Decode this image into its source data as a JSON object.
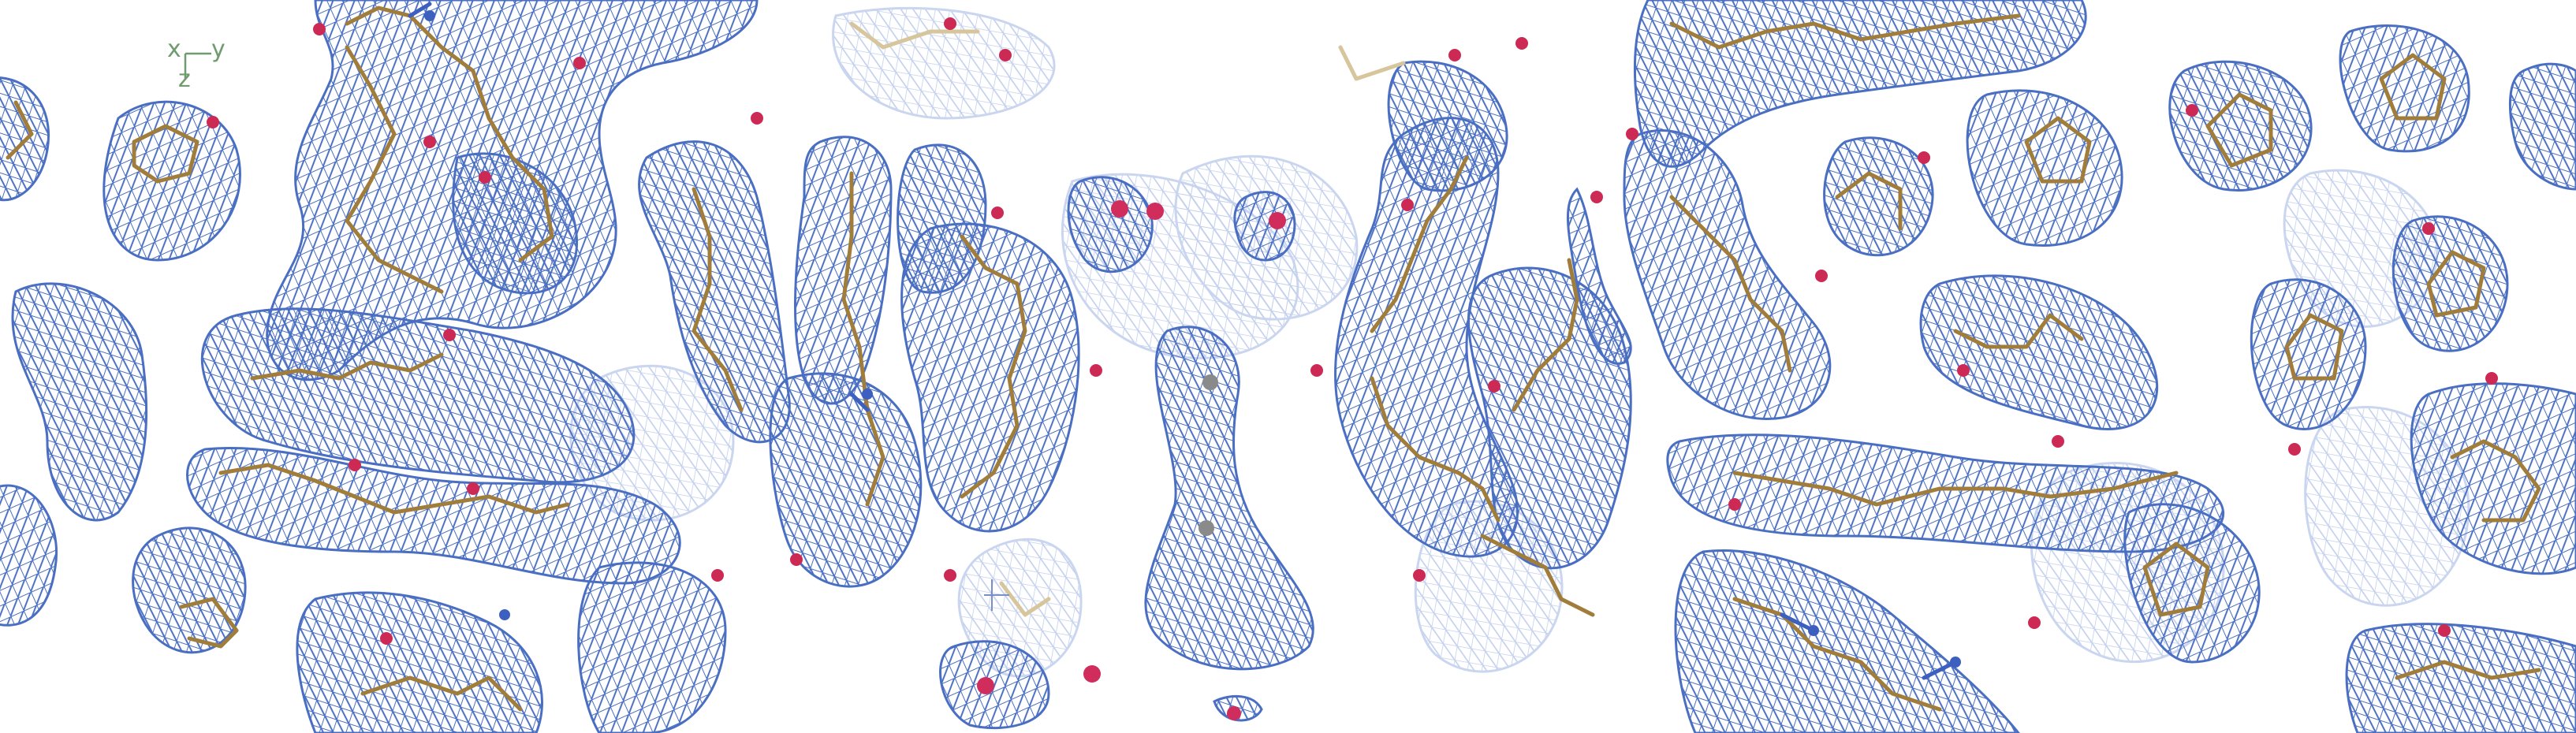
{
  "axis_indicator": {
    "x_label": "x",
    "y_label": "y",
    "z_label": "z"
  },
  "colors": {
    "background": "#ffffff",
    "density_mesh": "#4a6fc2",
    "density_mesh_faded": "#9fb4e2",
    "carbon": "#a07d3a",
    "nitrogen": "#3d5fbf",
    "oxygen": "#cc2a55",
    "water": "#d12d5c",
    "axis": "#6f9b6f"
  }
}
